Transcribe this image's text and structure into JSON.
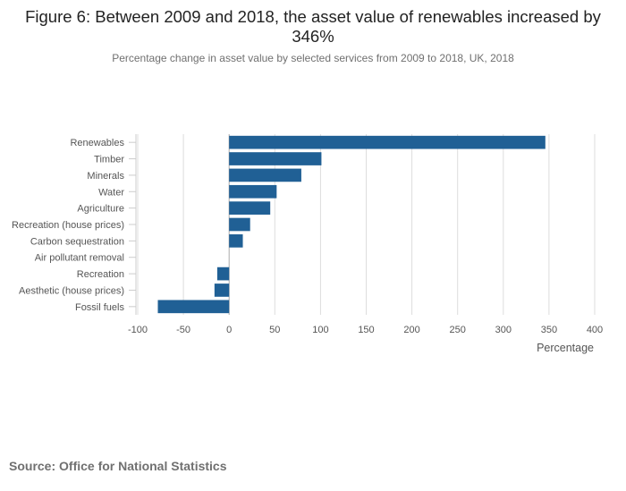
{
  "title": "Figure 6: Between 2009 and 2018, the asset value of renewables increased by 346%",
  "subtitle": "Percentage change in asset value by selected services from 2009 to 2018, UK, 2018",
  "source": "Source: Office for National Statistics",
  "chart_data": {
    "type": "bar",
    "orientation": "horizontal",
    "categories": [
      "Renewables",
      "Timber",
      "Minerals",
      "Water",
      "Agriculture",
      "Recreation (house prices)",
      "Carbon sequestration",
      "Air pollutant removal",
      "Recreation",
      "Aesthetic (house prices)",
      "Fossil fuels"
    ],
    "values": [
      346,
      101,
      79,
      52,
      45,
      23,
      15,
      0,
      -13,
      -16,
      -78
    ],
    "xlabel": "Percentage",
    "ylabel": "",
    "xlim": [
      -100,
      400
    ],
    "xticks": [
      -100,
      -50,
      0,
      50,
      100,
      150,
      200,
      250,
      300,
      350,
      400
    ],
    "grid": true,
    "bar_color": "#206095",
    "grid_color": "#dddddd",
    "zero_line_color": "#aaaaaa"
  }
}
